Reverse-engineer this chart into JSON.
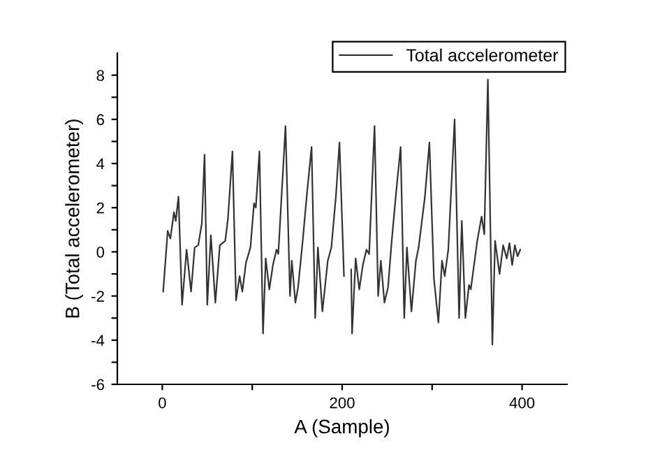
{
  "chart_data": {
    "type": "line",
    "xlabel": "A (Sample)",
    "ylabel": "B (Total accelerometer)",
    "xlim": [
      -50,
      450
    ],
    "ylim": [
      -6,
      9
    ],
    "xticks": [
      0,
      {
        "value": 100,
        "label": null
      },
      200,
      {
        "value": 300,
        "label": null
      },
      400
    ],
    "yticks": [
      -6,
      {
        "value": -5,
        "label": null
      },
      -4,
      {
        "value": -3,
        "label": null
      },
      -2,
      {
        "value": -1,
        "label": null
      },
      0,
      {
        "value": 1,
        "label": null
      },
      2,
      {
        "value": 3,
        "label": null
      },
      4,
      {
        "value": 5,
        "label": null
      },
      6,
      {
        "value": 7,
        "label": null
      },
      8
    ],
    "grid": false,
    "legend": "top right",
    "marker": "none",
    "line_style": "solid",
    "series": [
      {
        "name": "Total accelerometer",
        "color": "#333333",
        "x": [
          1,
          6,
          9,
          13,
          15,
          18,
          22,
          27,
          32,
          36,
          40,
          44,
          47,
          50,
          54,
          59,
          64,
          70,
          73,
          78,
          82,
          86,
          89,
          93,
          98,
          102,
          104,
          108,
          112,
          115,
          119,
          123,
          127,
          129,
          137,
          142,
          144,
          148,
          151,
          156,
          161,
          166,
          170,
          173,
          178,
          184,
          188,
          193,
          197,
          202,
          206,
          210,
          211,
          215,
          219,
          223,
          227,
          230,
          236,
          240,
          243,
          247,
          251,
          255,
          260,
          265,
          269,
          272,
          277,
          282,
          285,
          292,
          297,
          302,
          307,
          311,
          314,
          318,
          325,
          330,
          333,
          337,
          341,
          343,
          350,
          355,
          358,
          362,
          367,
          370,
          375,
          379,
          383,
          386,
          389,
          392,
          395,
          398
        ],
        "values": [
          -1.8,
          0.95,
          0.6,
          1.8,
          1.4,
          2.5,
          -2.4,
          0.1,
          -1.8,
          0.2,
          0.3,
          1.3,
          4.4,
          -2.4,
          0.75,
          -2.3,
          0.3,
          0.5,
          1.5,
          4.55,
          -2.2,
          -1.1,
          -1.8,
          -0.5,
          0.2,
          2.2,
          2.0,
          4.55,
          -3.7,
          -0.3,
          -1.7,
          -0.6,
          0.1,
          -0.1,
          5.7,
          -2.0,
          -0.4,
          -2.3,
          -1.6,
          0.45,
          2.7,
          4.75,
          -3.0,
          0.2,
          -2.7,
          -0.4,
          0.2,
          2.5,
          4.95,
          -1.1,
          null,
          -0.8,
          -3.7,
          -0.3,
          -1.7,
          -0.6,
          0.1,
          -0.1,
          5.7,
          -2.0,
          -0.4,
          -2.3,
          -1.6,
          0.45,
          2.7,
          4.75,
          -3.0,
          0.2,
          -2.7,
          -0.4,
          0.2,
          2.5,
          4.95,
          -1.2,
          -3.2,
          -0.4,
          -1.1,
          0.1,
          6.0,
          -3.0,
          1.4,
          -3.0,
          -1.5,
          -1.7,
          0.45,
          1.6,
          0.8,
          7.8,
          -4.2,
          0.5,
          -1.0,
          0.3,
          -0.3,
          0.4,
          -0.6,
          0.3,
          -0.2,
          0.1
        ]
      }
    ]
  }
}
